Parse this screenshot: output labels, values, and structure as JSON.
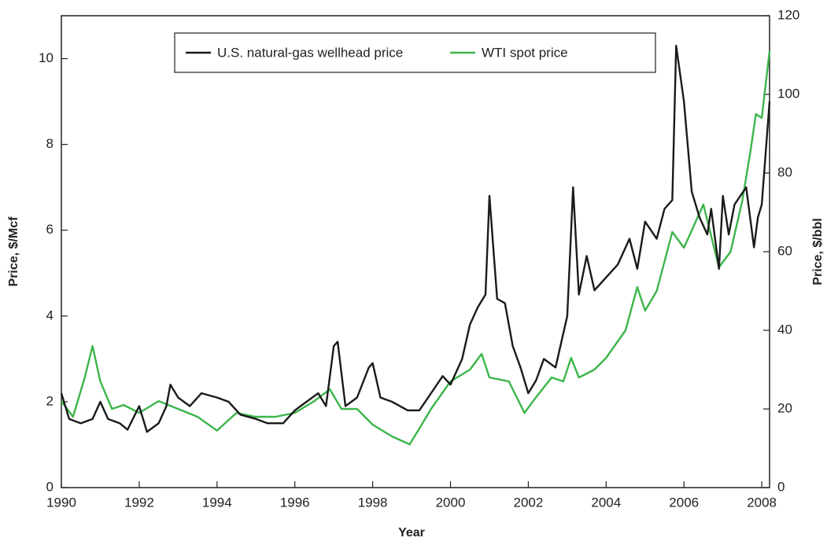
{
  "chart_data": {
    "type": "line",
    "x_label": "Year",
    "y_label": "Price, $/Mcf",
    "y2_label": "Price, $/bbl",
    "xlim": [
      1990,
      2008.2
    ],
    "xticks": [
      1990,
      1992,
      1994,
      1996,
      1998,
      2000,
      2002,
      2004,
      2006,
      2008
    ],
    "ylim": [
      0,
      11
    ],
    "yticks": [
      0,
      2,
      4,
      6,
      8,
      10
    ],
    "y2lim": [
      0,
      120
    ],
    "y2ticks": [
      0,
      20,
      40,
      60,
      80,
      100,
      120
    ],
    "legend": "top",
    "series": [
      {
        "name": "U.S. natural-gas wellhead price",
        "color": "#1a1a1a",
        "x": [
          1990.0,
          1990.2,
          1990.5,
          1990.8,
          1991.0,
          1991.2,
          1991.5,
          1991.7,
          1992.0,
          1992.2,
          1992.5,
          1992.7,
          1992.8,
          1993.0,
          1993.3,
          1993.6,
          1994.0,
          1994.3,
          1994.6,
          1995.0,
          1995.3,
          1995.7,
          1996.0,
          1996.3,
          1996.6,
          1996.8,
          1997.0,
          1997.1,
          1997.3,
          1997.6,
          1997.9,
          1998.0,
          1998.2,
          1998.5,
          1998.9,
          1999.2,
          1999.5,
          1999.8,
          2000.0,
          2000.3,
          2000.5,
          2000.7,
          2000.9,
          2001.0,
          2001.2,
          2001.4,
          2001.6,
          2001.8,
          2002.0,
          2002.2,
          2002.4,
          2002.7,
          2003.0,
          2003.15,
          2003.3,
          2003.5,
          2003.7,
          2004.0,
          2004.3,
          2004.6,
          2004.8,
          2005.0,
          2005.3,
          2005.5,
          2005.7,
          2005.8,
          2006.0,
          2006.2,
          2006.4,
          2006.6,
          2006.7,
          2006.9,
          2007.0,
          2007.15,
          2007.3,
          2007.6,
          2007.8,
          2007.9,
          2008.0,
          2008.2
        ],
        "values": [
          2.2,
          1.6,
          1.5,
          1.6,
          2.0,
          1.6,
          1.5,
          1.35,
          1.9,
          1.3,
          1.5,
          1.9,
          2.4,
          2.1,
          1.9,
          2.2,
          2.1,
          2.0,
          1.7,
          1.6,
          1.5,
          1.5,
          1.8,
          2.0,
          2.2,
          1.9,
          3.3,
          3.4,
          1.9,
          2.1,
          2.8,
          2.9,
          2.1,
          2.0,
          1.8,
          1.8,
          2.2,
          2.6,
          2.4,
          3.0,
          3.8,
          4.2,
          4.5,
          6.8,
          4.4,
          4.3,
          3.3,
          2.8,
          2.2,
          2.5,
          3.0,
          2.8,
          4.0,
          7.0,
          4.5,
          5.4,
          4.6,
          4.9,
          5.2,
          5.8,
          5.1,
          6.2,
          5.8,
          6.5,
          6.7,
          10.3,
          9.0,
          6.9,
          6.3,
          5.9,
          6.5,
          5.1,
          6.8,
          5.9,
          6.6,
          7.0,
          5.6,
          6.3,
          6.6,
          9.0
        ]
      },
      {
        "name": "WTI spot price",
        "color": "#3cb54a",
        "axis": "y2",
        "x": [
          1990.0,
          1990.3,
          1990.6,
          1990.8,
          1991.0,
          1991.3,
          1991.6,
          1992.0,
          1992.5,
          1993.0,
          1993.5,
          1994.0,
          1994.5,
          1995.0,
          1995.5,
          1996.0,
          1996.5,
          1996.9,
          1997.2,
          1997.6,
          1998.0,
          1998.5,
          1998.95,
          1999.2,
          1999.5,
          2000.0,
          2000.5,
          2000.8,
          2001.0,
          2001.5,
          2001.9,
          2002.2,
          2002.6,
          2002.9,
          2003.1,
          2003.3,
          2003.7,
          2004.0,
          2004.5,
          2004.8,
          2005.0,
          2005.3,
          2005.7,
          2006.0,
          2006.5,
          2006.9,
          2007.2,
          2007.5,
          2007.7,
          2007.85,
          2008.0,
          2008.2
        ],
        "values": [
          22,
          18,
          28,
          36,
          27,
          20,
          21,
          19,
          22,
          20,
          18,
          14.5,
          19,
          18,
          18,
          19,
          22,
          25,
          20,
          20,
          16,
          13,
          11,
          15,
          20,
          27,
          30,
          34,
          28,
          27,
          19,
          23,
          28,
          27,
          33,
          28,
          30,
          33,
          40,
          51,
          45,
          50,
          65,
          61,
          72,
          56,
          60,
          73,
          85,
          95,
          94,
          111
        ]
      }
    ]
  }
}
